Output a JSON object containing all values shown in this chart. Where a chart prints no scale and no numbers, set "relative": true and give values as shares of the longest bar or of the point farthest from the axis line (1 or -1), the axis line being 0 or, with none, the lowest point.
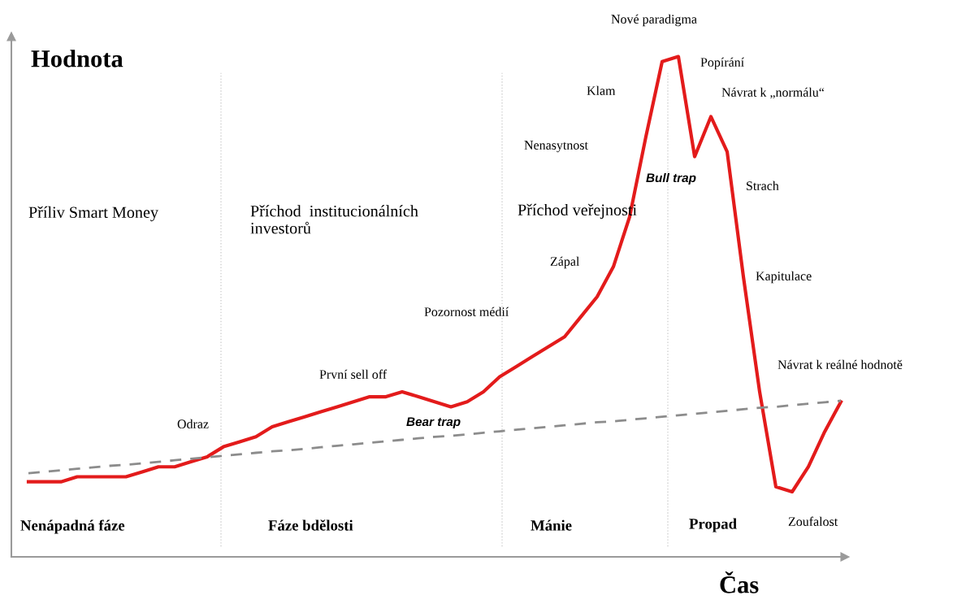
{
  "chart_data": {
    "type": "line",
    "relative": true,
    "xlabel": "Čas",
    "ylabel": "Hodnota",
    "categories": [
      null,
      null,
      null,
      null,
      null,
      null,
      null,
      null,
      null,
      null,
      null,
      null,
      null,
      null,
      null,
      null,
      null,
      null,
      null,
      null,
      null,
      null,
      null,
      null,
      null,
      null,
      null,
      null,
      null,
      null,
      null,
      null,
      null,
      null,
      null,
      null,
      null,
      null,
      null,
      null,
      null,
      null,
      null,
      null,
      null,
      null,
      null,
      null,
      null,
      null,
      null
    ],
    "series": [
      {
        "color": "#e31b1b",
        "line_style": "solid",
        "values": [
          0.15,
          0.15,
          0.15,
          0.16,
          0.16,
          0.16,
          0.16,
          0.17,
          0.18,
          0.18,
          0.19,
          0.2,
          0.22,
          0.23,
          0.24,
          0.26,
          0.27,
          0.28,
          0.29,
          0.3,
          0.31,
          0.32,
          0.32,
          0.33,
          0.32,
          0.31,
          0.3,
          0.31,
          0.33,
          0.36,
          0.38,
          0.4,
          0.42,
          0.44,
          0.48,
          0.52,
          0.58,
          0.68,
          0.84,
          0.99,
          1,
          0.8,
          0.88,
          0.81,
          0.56,
          0.33,
          0.14,
          0.13,
          0.18,
          0.25,
          0.31
        ]
      },
      {
        "color": "#8c8c8c",
        "line_style": "dashed",
        "values": [
          0.167,
          0.17,
          0.173,
          0.176,
          0.179,
          0.182,
          0.184,
          0.187,
          0.19,
          0.193,
          0.196,
          0.199,
          0.202,
          0.205,
          0.208,
          0.211,
          0.213,
          0.216,
          0.219,
          0.222,
          0.225,
          0.228,
          0.231,
          0.234,
          0.237,
          0.24,
          0.242,
          0.245,
          0.248,
          0.251,
          0.254,
          0.257,
          0.26,
          0.263,
          0.266,
          0.269,
          0.271,
          0.274,
          0.277,
          0.28,
          0.283,
          0.286,
          0.289,
          0.292,
          0.295,
          0.298,
          0.3,
          0.303,
          0.306,
          0.309,
          0.312
        ]
      }
    ],
    "annotations": [
      "Nové paradigma",
      "Popírání",
      "Návrat k „normálu“",
      "Klam",
      "Nenasytnost",
      "Bull trap",
      "Strach",
      "Příliv Smart Money",
      "Příchod  institucionálních\ninvestorů",
      "Příchod veřejnosti",
      "Zápal",
      "Kapitulace",
      "Pozornost médií",
      "Návrat k reálné hodnotě",
      "První sell off",
      "Odraz",
      "Bear trap",
      "Nenápadná fáze",
      "Fáze bdělosti",
      "Mánie",
      "Propad",
      "Zoufalost"
    ],
    "grid": false,
    "legend": false
  }
}
